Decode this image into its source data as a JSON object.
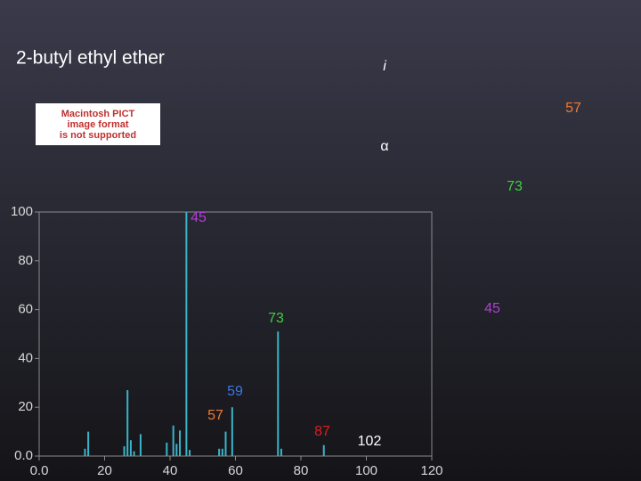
{
  "slide": {
    "title": "2-butyl ethyl ether",
    "labels": [
      {
        "text": "i",
        "color": "#ffffff"
      },
      {
        "text": "57",
        "color": "#f07a30"
      },
      {
        "text": "α",
        "color": "#ffffff"
      },
      {
        "text": "73",
        "color": "#3ed13e"
      },
      {
        "text": "45",
        "color": "#b43cd6"
      }
    ],
    "image_notice": [
      "Macintosh PICT",
      "image format",
      "is not supported"
    ]
  },
  "chart_data": {
    "type": "stem",
    "x": [
      14,
      15,
      26,
      27,
      28,
      29,
      31,
      39,
      41,
      42,
      43,
      45,
      46,
      55,
      56,
      57,
      59,
      73,
      74,
      87
    ],
    "values": [
      3,
      10,
      4,
      27,
      6.5,
      2,
      9,
      5.5,
      12.5,
      5,
      10.5,
      100,
      2.5,
      3,
      3,
      10,
      20,
      51,
      3,
      4.5
    ],
    "color": "#3ab4c8",
    "xlim": [
      0,
      120
    ],
    "xticks": [
      {
        "value": 0,
        "label": "0.0"
      },
      20,
      40,
      60,
      80,
      100,
      120
    ],
    "ylim": [
      0,
      100
    ],
    "yticks": [
      {
        "value": 0,
        "label": "0.0"
      },
      20,
      40,
      60,
      80,
      100
    ],
    "annotations": [
      {
        "text": "45",
        "color": "#b43cd6"
      },
      {
        "text": "73",
        "color": "#3ed13e"
      },
      {
        "text": "59",
        "color": "#3a78e8"
      },
      {
        "text": "57",
        "color": "#f07a30"
      },
      {
        "text": "87",
        "color": "#d82020"
      },
      {
        "text": "102",
        "color": "#ffffff"
      }
    ]
  }
}
